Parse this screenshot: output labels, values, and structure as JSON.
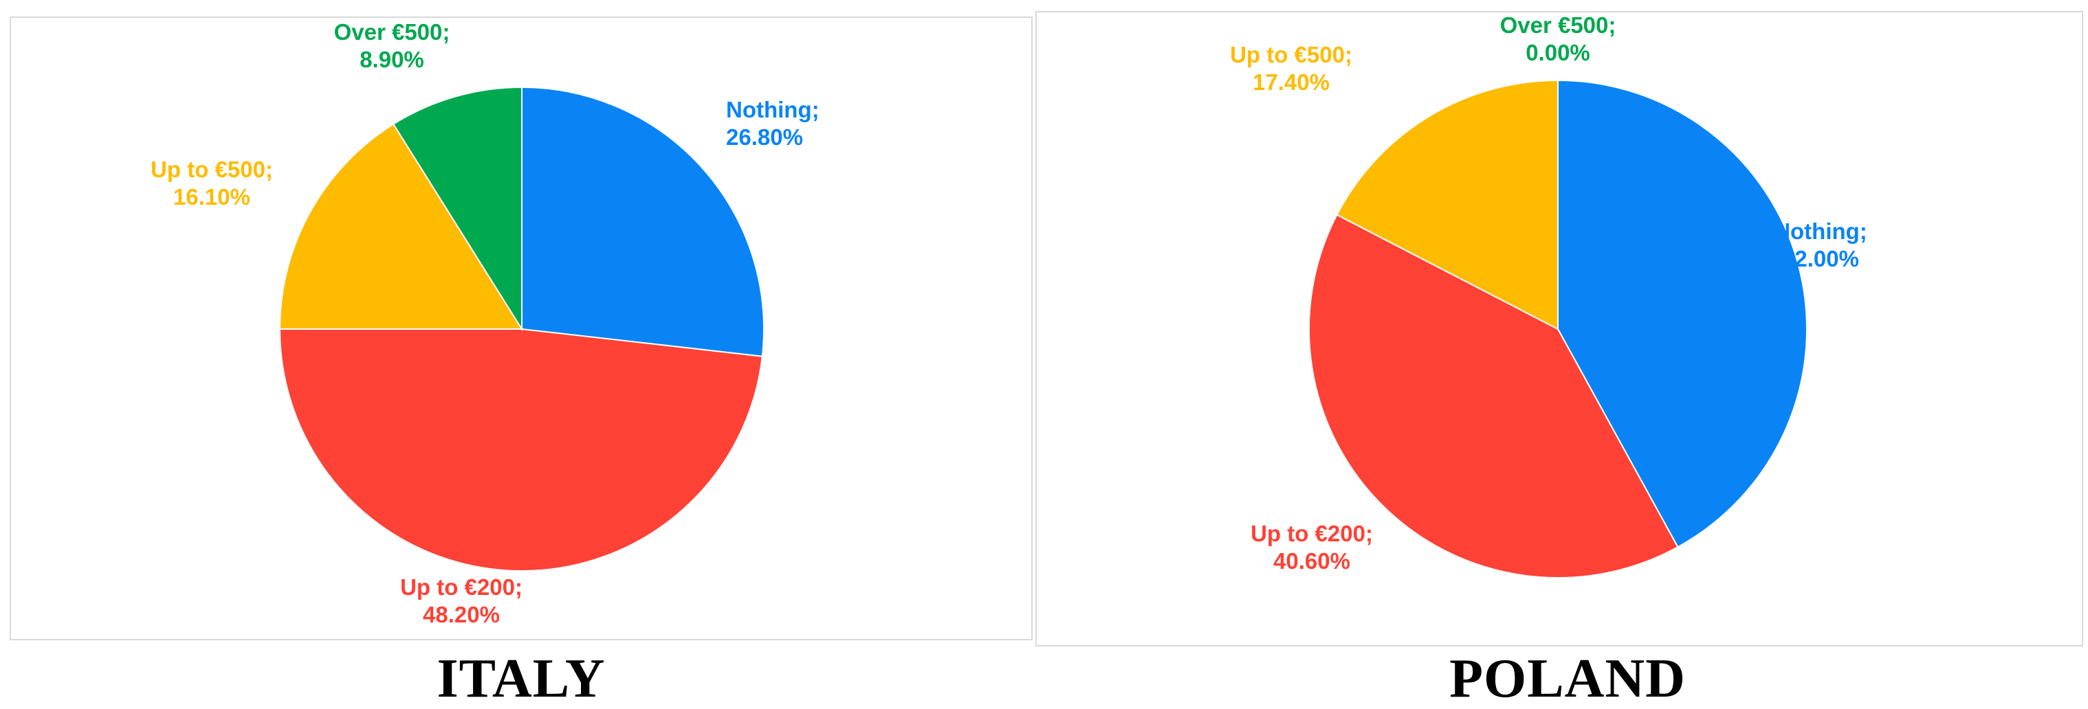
{
  "chart_data": [
    {
      "type": "pie",
      "title": "ITALY",
      "slices": [
        {
          "label": "Nothing",
          "value": 26.8,
          "display": "26.80%",
          "color": "#0a84f5"
        },
        {
          "label": "Up to €200",
          "value": 48.2,
          "display": "48.20%",
          "color": "#ff4136"
        },
        {
          "label": "Up to €500",
          "value": 16.1,
          "display": "16.10%",
          "color": "#ffbb00"
        },
        {
          "label": "Over €500",
          "value": 8.9,
          "display": "8.90%",
          "color": "#00a84f"
        }
      ]
    },
    {
      "type": "pie",
      "title": "POLAND",
      "slices": [
        {
          "label": "Nothing",
          "value": 42.0,
          "display": "42.00%",
          "color": "#0a84f5"
        },
        {
          "label": "Up to €200",
          "value": 40.6,
          "display": "40.60%",
          "color": "#ff4136"
        },
        {
          "label": "Up to €500",
          "value": 17.4,
          "display": "17.40%",
          "color": "#ffbb00"
        },
        {
          "label": "Over €500",
          "value": 0.0,
          "display": "0.00%",
          "color": "#00a84f"
        }
      ]
    }
  ]
}
